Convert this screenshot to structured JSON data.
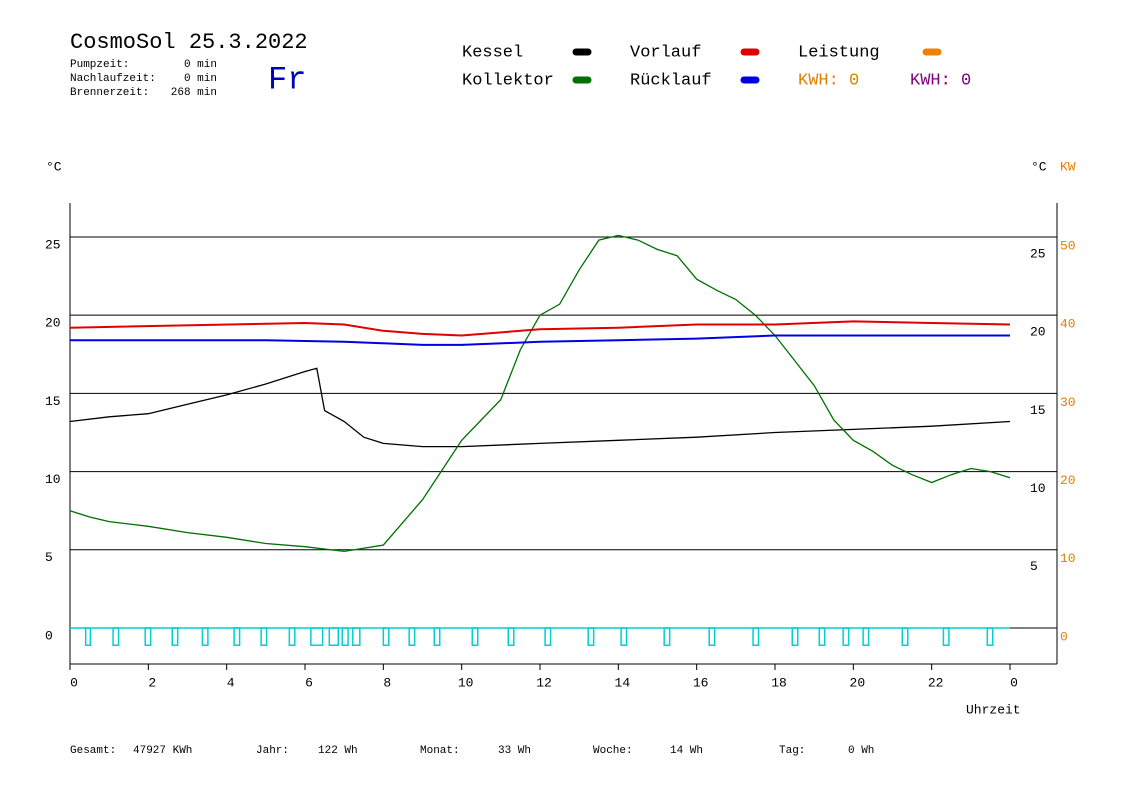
{
  "header": {
    "title": "CosmoSol 25.3.2022",
    "day": "Fr",
    "times": [
      {
        "label": "Pumpzeit:",
        "value": "0 min"
      },
      {
        "label": "Nachlaufzeit:",
        "value": "0 min"
      },
      {
        "label": "Brennerzeit:",
        "value": "268 min"
      }
    ]
  },
  "extra_legend": [
    {
      "text": "KWH: 0",
      "color": "#e08000"
    },
    {
      "text": "KWH: 0",
      "color": "#800080"
    }
  ],
  "chart_data": {
    "type": "line",
    "y_unit": "°C",
    "y2_unit_left": "°C",
    "y2_unit_right": "KW",
    "xlabel": "Uhrzeit",
    "xlim": [
      0,
      24
    ],
    "xticks": [
      0,
      2,
      4,
      6,
      8,
      10,
      12,
      14,
      16,
      18,
      20,
      22,
      {
        "value": 24,
        "label": "0"
      }
    ],
    "ylim": [
      -2.3,
      27.17
    ],
    "yticks": [
      0,
      5,
      10,
      15,
      20,
      25
    ],
    "yticks_right": [
      5,
      10,
      15,
      20,
      25
    ],
    "y2lim": [
      -4.6,
      54.34
    ],
    "y2ticks": [
      0,
      10,
      20,
      30,
      40,
      50
    ],
    "y2color": "#e08000",
    "grid": true,
    "series": [
      {
        "name": "Kessel",
        "color": "#000000",
        "x": [
          0,
          1,
          2,
          3,
          4,
          5,
          6,
          6.3,
          6.5,
          7,
          7.5,
          8,
          9,
          10,
          12,
          14,
          16,
          18,
          20,
          22,
          24
        ],
        "values": [
          13.2,
          13.5,
          13.7,
          14.3,
          14.9,
          15.6,
          16.4,
          16.6,
          13.9,
          13.2,
          12.2,
          11.8,
          11.6,
          11.6,
          11.8,
          12.0,
          12.2,
          12.5,
          12.7,
          12.9,
          13.2
        ]
      },
      {
        "name": "Kollektor",
        "color": "#007000",
        "x": [
          0,
          0.5,
          1,
          2,
          3,
          4,
          5,
          6,
          7,
          8,
          9,
          9.5,
          10,
          11,
          11.5,
          12,
          12.5,
          13,
          13.5,
          14,
          14.5,
          15,
          15.5,
          16,
          16.5,
          17,
          17.5,
          18,
          18.5,
          19,
          19.5,
          20,
          20.5,
          21,
          21.5,
          22,
          22.5,
          23,
          23.5,
          24
        ],
        "values": [
          7.5,
          7.1,
          6.8,
          6.5,
          6.1,
          5.8,
          5.4,
          5.2,
          4.9,
          5.3,
          8.2,
          10.1,
          12.0,
          14.6,
          17.8,
          20.0,
          20.7,
          22.9,
          24.8,
          25.1,
          24.8,
          24.2,
          23.8,
          22.3,
          21.6,
          21.0,
          20.0,
          18.7,
          17.1,
          15.5,
          13.3,
          12.0,
          11.3,
          10.4,
          9.8,
          9.3,
          9.8,
          10.2,
          10.0,
          9.6
        ]
      },
      {
        "name": "Vorlauf",
        "color": "#e00000",
        "x": [
          0,
          6,
          7,
          8,
          9,
          10,
          12,
          14,
          16,
          18,
          20,
          22,
          24
        ],
        "values": [
          19.2,
          19.5,
          19.4,
          19.0,
          18.8,
          18.7,
          19.1,
          19.2,
          19.4,
          19.4,
          19.6,
          19.5,
          19.4
        ]
      },
      {
        "name": "Rücklauf",
        "color": "#0000e0",
        "x": [
          0,
          5,
          7,
          8,
          9,
          10,
          12,
          14,
          16,
          18,
          20,
          22,
          24
        ],
        "values": [
          18.4,
          18.4,
          18.3,
          18.2,
          18.1,
          18.1,
          18.3,
          18.4,
          18.5,
          18.7,
          18.7,
          18.7,
          18.7
        ]
      },
      {
        "name": "Leistung",
        "color": "#f08000"
      }
    ],
    "pulses": {
      "color": "#00d0d0",
      "level": -1.1,
      "starts": [
        0.4,
        1.1,
        1.92,
        2.61,
        3.38,
        4.19,
        4.88,
        5.6,
        6.15,
        6.62,
        6.95,
        7.22,
        8.0,
        8.66,
        9.3,
        10.27,
        11.19,
        12.13,
        13.23,
        14.07,
        15.17,
        16.32,
        17.44,
        18.44,
        19.13,
        19.74,
        20.25,
        21.25,
        22.3,
        23.42
      ],
      "ends": [
        0.52,
        1.24,
        2.06,
        2.75,
        3.52,
        4.33,
        5.02,
        5.74,
        6.45,
        6.85,
        7.1,
        7.4,
        8.14,
        8.8,
        9.44,
        10.41,
        11.33,
        12.27,
        13.37,
        14.21,
        15.31,
        16.46,
        17.58,
        18.58,
        19.27,
        19.88,
        20.39,
        21.39,
        22.44,
        23.56
      ]
    }
  },
  "footer": [
    {
      "label": "Gesamt:",
      "value": "47927 KWh"
    },
    {
      "label": "Jahr:",
      "value": "122 Wh"
    },
    {
      "label": "Monat:",
      "value": "33 Wh"
    },
    {
      "label": "Woche:",
      "value": "14 Wh"
    },
    {
      "label": "Tag:",
      "value": "0 Wh"
    }
  ]
}
